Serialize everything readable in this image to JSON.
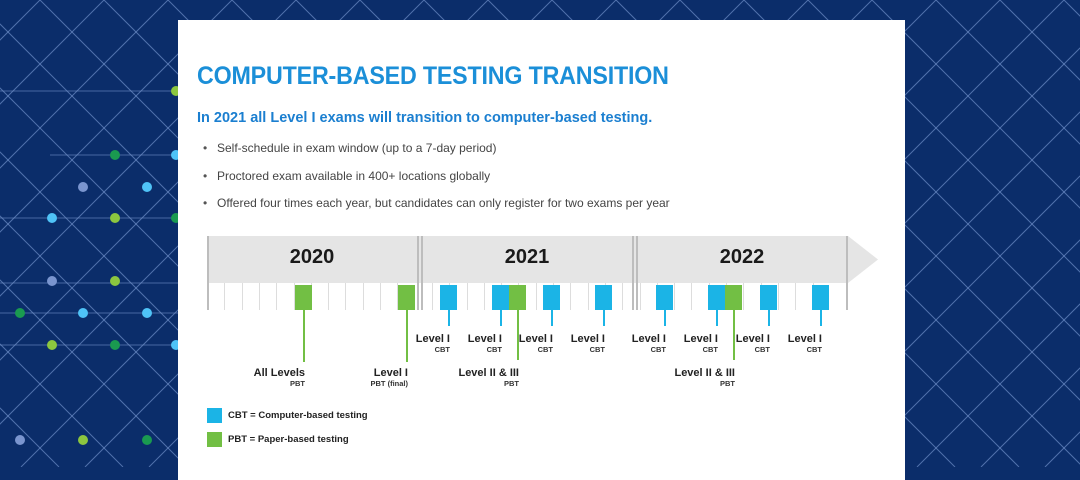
{
  "title": "COMPUTER-BASED TESTING TRANSITION",
  "subtitle": "In 2021 all Level I exams will transition to computer-based testing.",
  "bullets": [
    "Self-schedule in exam window (up to a 7-day period)",
    "Proctored exam available in 400+ locations globally",
    "Offered four times each year, but candidates can only register for two exams per year"
  ],
  "colors": {
    "cbt": "#1bb4e6",
    "pbt": "#72bf44",
    "background": "#0b2d6a",
    "title": "#1b8fd8"
  },
  "timeline": {
    "years": [
      "2020",
      "2021",
      "2022"
    ],
    "events": [
      {
        "year": "2020",
        "type": "pbt",
        "label": "All Levels",
        "sub": "PBT"
      },
      {
        "year": "2020",
        "type": "pbt",
        "label": "Level I",
        "sub": "PBT (final)"
      },
      {
        "year": "2021",
        "type": "cbt",
        "label": "Level I",
        "sub": "CBT"
      },
      {
        "year": "2021",
        "type": "cbt",
        "label": "Level I",
        "sub": "CBT"
      },
      {
        "year": "2021",
        "type": "pbt",
        "label": "Level II & III",
        "sub": "PBT"
      },
      {
        "year": "2021",
        "type": "cbt",
        "label": "Level I",
        "sub": "CBT"
      },
      {
        "year": "2021",
        "type": "cbt",
        "label": "Level I",
        "sub": "CBT"
      },
      {
        "year": "2022",
        "type": "cbt",
        "label": "Level I",
        "sub": "CBT"
      },
      {
        "year": "2022",
        "type": "cbt",
        "label": "Level I",
        "sub": "CBT"
      },
      {
        "year": "2022",
        "type": "pbt",
        "label": "Level II & III",
        "sub": "PBT"
      },
      {
        "year": "2022",
        "type": "cbt",
        "label": "Level I",
        "sub": "CBT"
      },
      {
        "year": "2022",
        "type": "cbt",
        "label": "Level I",
        "sub": "CBT"
      }
    ]
  },
  "legend": [
    {
      "type": "cbt",
      "text": "CBT = Computer-based testing"
    },
    {
      "type": "pbt",
      "text": "PBT = Paper-based testing"
    }
  ]
}
